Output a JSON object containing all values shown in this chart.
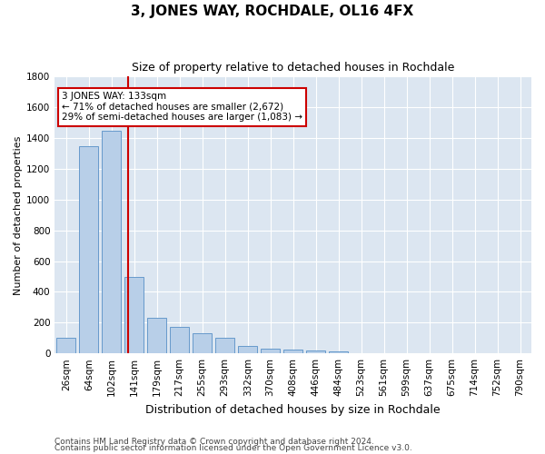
{
  "title": "3, JONES WAY, ROCHDALE, OL16 4FX",
  "subtitle": "Size of property relative to detached houses in Rochdale",
  "xlabel": "Distribution of detached houses by size in Rochdale",
  "ylabel": "Number of detached properties",
  "footer1": "Contains HM Land Registry data © Crown copyright and database right 2024.",
  "footer2": "Contains public sector information licensed under the Open Government Licence v3.0.",
  "categories": [
    "26sqm",
    "64sqm",
    "102sqm",
    "141sqm",
    "179sqm",
    "217sqm",
    "255sqm",
    "293sqm",
    "332sqm",
    "370sqm",
    "408sqm",
    "446sqm",
    "484sqm",
    "523sqm",
    "561sqm",
    "599sqm",
    "637sqm",
    "675sqm",
    "714sqm",
    "752sqm",
    "790sqm"
  ],
  "values": [
    100,
    1350,
    1450,
    500,
    230,
    170,
    130,
    100,
    50,
    30,
    25,
    20,
    15,
    0,
    0,
    0,
    0,
    0,
    0,
    0,
    0
  ],
  "bar_color": "#b8cfe8",
  "bar_edge_color": "#6699cc",
  "fig_background": "#ffffff",
  "plot_background": "#dce6f1",
  "grid_color": "#ffffff",
  "vline_x": 2.72,
  "vline_color": "#cc0000",
  "annot_line1": "3 JONES WAY: 133sqm",
  "annot_line2": "← 71% of detached houses are smaller (2,672)",
  "annot_line3": "29% of semi-detached houses are larger (1,083) →",
  "annotation_box_color": "#ffffff",
  "annotation_box_edge": "#cc0000",
  "ylim": [
    0,
    1800
  ],
  "yticks": [
    0,
    200,
    400,
    600,
    800,
    1000,
    1200,
    1400,
    1600,
    1800
  ],
  "title_fontsize": 11,
  "subtitle_fontsize": 9,
  "xlabel_fontsize": 9,
  "ylabel_fontsize": 8,
  "tick_fontsize": 7.5,
  "footer_fontsize": 6.5
}
